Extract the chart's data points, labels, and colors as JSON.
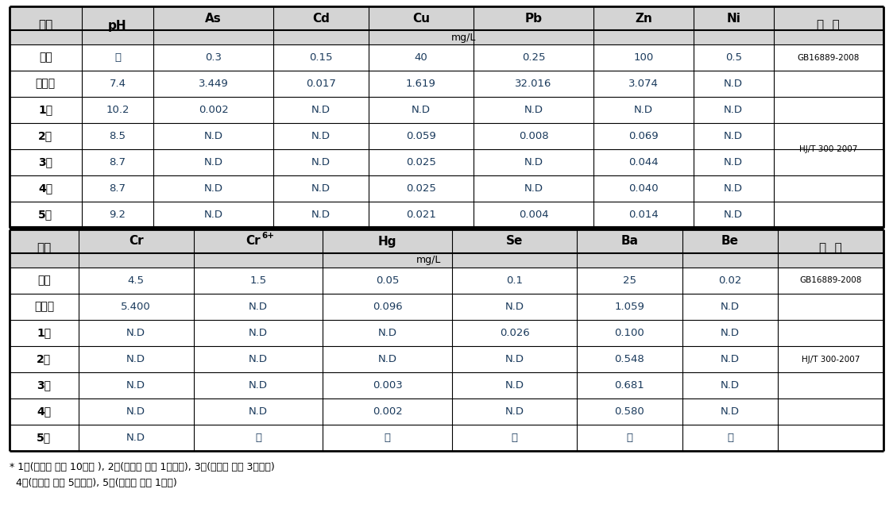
{
  "footnote1": "* 1회(안정화 처리 10일후 ), 2회(안정화 처리 1개월후), 3회(안정화 처리 3개월후)",
  "footnote2": "  4회(안정화 처리 5개월후), 5회(안정화 처리 1년후)",
  "table1": {
    "rows": [
      [
        "기준",
        "－",
        "0.3",
        "0.15",
        "40",
        "0.25",
        "100",
        "0.5",
        "GB16889-2008"
      ],
      [
        "처리전",
        "7.4",
        "3.449",
        "0.017",
        "1.619",
        "32.016",
        "3.074",
        "N.D",
        ""
      ],
      [
        "1회",
        "10.2",
        "0.002",
        "N.D",
        "N.D",
        "N.D",
        "N.D",
        "N.D",
        ""
      ],
      [
        "2회",
        "8.5",
        "N.D",
        "N.D",
        "0.059",
        "0.008",
        "0.069",
        "N.D",
        "HJ/T 300-2007"
      ],
      [
        "3회",
        "8.7",
        "N.D",
        "N.D",
        "0.025",
        "N.D",
        "0.044",
        "N.D",
        ""
      ],
      [
        "4회",
        "8.7",
        "N.D",
        "N.D",
        "0.025",
        "N.D",
        "0.040",
        "N.D",
        ""
      ],
      [
        "5회",
        "9.2",
        "N.D",
        "N.D",
        "0.021",
        "0.004",
        "0.014",
        "N.D",
        ""
      ]
    ]
  },
  "table2": {
    "rows": [
      [
        "기준",
        "4.5",
        "1.5",
        "0.05",
        "0.1",
        "25",
        "0.02",
        "GB16889-2008"
      ],
      [
        "처리전",
        "5.400",
        "N.D",
        "0.096",
        "N.D",
        "1.059",
        "N.D",
        ""
      ],
      [
        "1회",
        "N.D",
        "N.D",
        "N.D",
        "0.026",
        "0.100",
        "N.D",
        ""
      ],
      [
        "2회",
        "N.D",
        "N.D",
        "N.D",
        "N.D",
        "0.548",
        "N.D",
        "HJ/T 300-2007"
      ],
      [
        "3회",
        "N.D",
        "N.D",
        "0.003",
        "N.D",
        "0.681",
        "N.D",
        ""
      ],
      [
        "4회",
        "N.D",
        "N.D",
        "0.002",
        "N.D",
        "0.580",
        "N.D",
        ""
      ],
      [
        "5회",
        "N.D",
        "－",
        "－",
        "－",
        "－",
        "－",
        ""
      ]
    ]
  },
  "bg_color": "#ffffff",
  "header_bg": "#d4d4d4",
  "black": "#000000",
  "data_color": "#1a3a5c",
  "label_color": "#1a1a1a"
}
